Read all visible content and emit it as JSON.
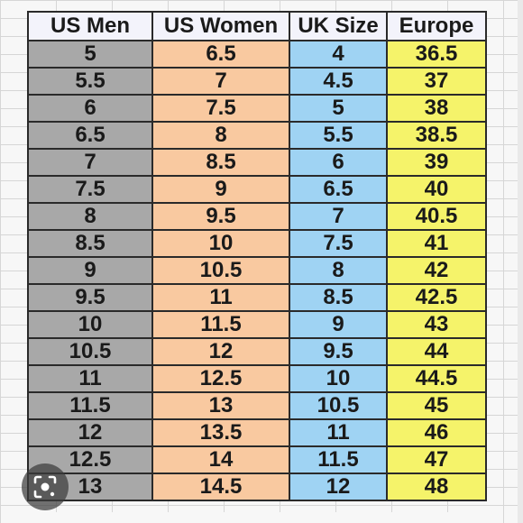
{
  "colors": {
    "men": "#a8a8a8",
    "women": "#f9c9a0",
    "uk": "#9fd3f3",
    "eu": "#f5f36a",
    "header": "#f3f3fb"
  },
  "table": {
    "headers": [
      "US Men",
      "US Women",
      "UK Size",
      "Europe"
    ],
    "rows": [
      [
        "5",
        "6.5",
        "4",
        "36.5"
      ],
      [
        "5.5",
        "7",
        "4.5",
        "37"
      ],
      [
        "6",
        "7.5",
        "5",
        "38"
      ],
      [
        "6.5",
        "8",
        "5.5",
        "38.5"
      ],
      [
        "7",
        "8.5",
        "6",
        "39"
      ],
      [
        "7.5",
        "9",
        "6.5",
        "40"
      ],
      [
        "8",
        "9.5",
        "7",
        "40.5"
      ],
      [
        "8.5",
        "10",
        "7.5",
        "41"
      ],
      [
        "9",
        "10.5",
        "8",
        "42"
      ],
      [
        "9.5",
        "11",
        "8.5",
        "42.5"
      ],
      [
        "10",
        "11.5",
        "9",
        "43"
      ],
      [
        "10.5",
        "12",
        "9.5",
        "44"
      ],
      [
        "11",
        "12.5",
        "10",
        "44.5"
      ],
      [
        "11.5",
        "13",
        "10.5",
        "45"
      ],
      [
        "12",
        "13.5",
        "11",
        "46"
      ],
      [
        "12.5",
        "14",
        "11.5",
        "47"
      ],
      [
        "13",
        "14.5",
        "12",
        "48"
      ]
    ]
  },
  "overlay": {
    "lens_icon": "visual-search-icon"
  }
}
